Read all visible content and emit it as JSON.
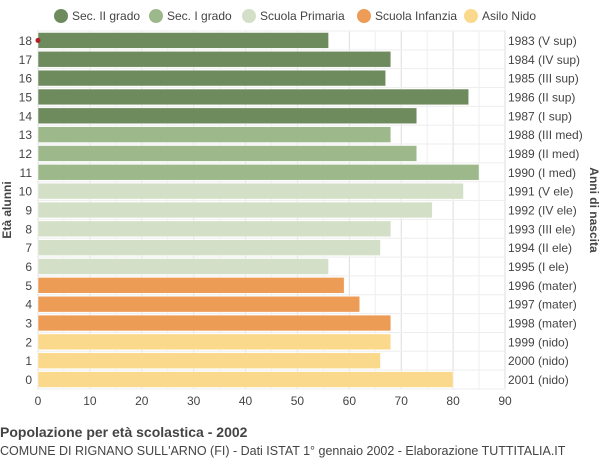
{
  "chart_data": {
    "type": "bar",
    "orientation": "horizontal",
    "title": "Popolazione per età scolastica - 2002",
    "subtitle": "COMUNE DI RIGNANO SULL'ARNO (FI) - Dati ISTAT 1° gennaio 2002 - Elaborazione TUTTITALIA.IT",
    "ylabel_left": "Età alunni",
    "ylabel_right": "Anni di nascita",
    "xlim": [
      0,
      90
    ],
    "x_ticks": [
      0,
      10,
      20,
      30,
      40,
      50,
      60,
      70,
      80,
      90
    ],
    "grid": true,
    "legend_position": "top",
    "legend": [
      {
        "name": "Sec. II grado",
        "color": "#6e8b5e"
      },
      {
        "name": "Sec. I grado",
        "color": "#9db98b"
      },
      {
        "name": "Scuola Primaria",
        "color": "#d3dfc6"
      },
      {
        "name": "Scuola Infanzia",
        "color": "#ed9c55"
      },
      {
        "name": "Asilo Nido",
        "color": "#fbd98c"
      }
    ],
    "rows": [
      {
        "age": "18",
        "birth": "1983 (V sup)",
        "value": 56,
        "group": 0
      },
      {
        "age": "17",
        "birth": "1984 (IV sup)",
        "value": 68,
        "group": 0
      },
      {
        "age": "16",
        "birth": "1985 (III sup)",
        "value": 67,
        "group": 0
      },
      {
        "age": "15",
        "birth": "1986 (II sup)",
        "value": 83,
        "group": 0
      },
      {
        "age": "14",
        "birth": "1987 (I sup)",
        "value": 73,
        "group": 0
      },
      {
        "age": "13",
        "birth": "1988 (III med)",
        "value": 68,
        "group": 1
      },
      {
        "age": "12",
        "birth": "1989 (II med)",
        "value": 73,
        "group": 1
      },
      {
        "age": "11",
        "birth": "1990 (I med)",
        "value": 85,
        "group": 1
      },
      {
        "age": "10",
        "birth": "1991 (V ele)",
        "value": 82,
        "group": 2
      },
      {
        "age": "9",
        "birth": "1992 (IV ele)",
        "value": 76,
        "group": 2
      },
      {
        "age": "8",
        "birth": "1993 (III ele)",
        "value": 68,
        "group": 2
      },
      {
        "age": "7",
        "birth": "1994 (II ele)",
        "value": 66,
        "group": 2
      },
      {
        "age": "6",
        "birth": "1995 (I ele)",
        "value": 56,
        "group": 2
      },
      {
        "age": "5",
        "birth": "1996 (mater)",
        "value": 59,
        "group": 3
      },
      {
        "age": "4",
        "birth": "1997 (mater)",
        "value": 62,
        "group": 3
      },
      {
        "age": "3",
        "birth": "1998 (mater)",
        "value": 68,
        "group": 3
      },
      {
        "age": "2",
        "birth": "1999 (nido)",
        "value": 68,
        "group": 4
      },
      {
        "age": "1",
        "birth": "2000 (nido)",
        "value": 66,
        "group": 4
      },
      {
        "age": "0",
        "birth": "2001 (nido)",
        "value": 80,
        "group": 4
      }
    ]
  }
}
